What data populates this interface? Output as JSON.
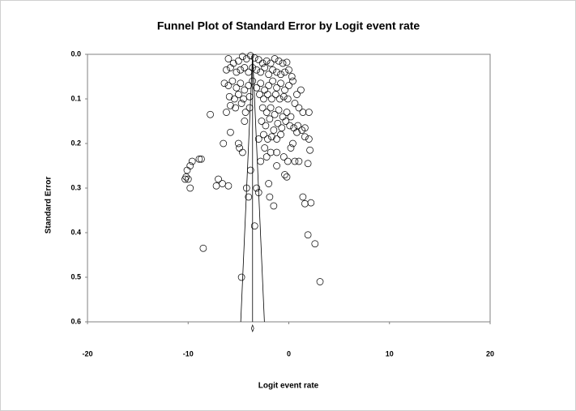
{
  "chart_data": {
    "type": "funnel",
    "title": "Funnel Plot of Standard Error by Logit event rate",
    "x_label": "Logit event rate",
    "y_label": "Standard Error",
    "xlim": [
      -20,
      20
    ],
    "xticks": [
      -20,
      -10,
      0,
      10,
      20
    ],
    "ylim": [
      0,
      0.6
    ],
    "y_inverted": true,
    "yticks": [
      {
        "value": 0,
        "label": "0.0"
      },
      0.1,
      0.2,
      0.3,
      0.4,
      0.5,
      0.6
    ],
    "summary": -3.6,
    "color": "#000000",
    "x": [
      -6,
      -5.5,
      -5,
      -4.6,
      -4.2,
      -3.8,
      -3.4,
      -3,
      -2.6,
      -2.2,
      -1.8,
      -1.4,
      -1,
      -0.6,
      -0.2,
      -6.2,
      -5.8,
      -5.2,
      -4.8,
      -4.4,
      -4,
      -3.6,
      -3.2,
      -2.8,
      -2.4,
      -2,
      -1.6,
      -1.2,
      -0.8,
      -0.4,
      0,
      0.3,
      -6.4,
      -6,
      -5.6,
      -5.2,
      -4.8,
      -4.4,
      -4,
      -3.6,
      -3.2,
      -2.8,
      -2.4,
      -2,
      -1.6,
      -1.2,
      -0.8,
      -0.4,
      0,
      0.4,
      0.8,
      -5.9,
      -5.4,
      -5,
      -4.5,
      -3.9,
      -2.9,
      -2.5,
      -2.1,
      -1.7,
      -1.3,
      -0.9,
      -0.5,
      -0.1,
      0.6,
      1.2,
      1.0,
      -5.8,
      -5.3,
      -4.7,
      -4.3,
      -3.9,
      -2.6,
      -2.2,
      -1.8,
      -1.4,
      -1,
      -0.6,
      -0.2,
      0.2,
      1.4,
      2,
      -7.8,
      -6.2,
      -4.4,
      -2.7,
      -2.3,
      -1.9,
      -1.5,
      -1.1,
      -0.7,
      -0.3,
      0.1,
      0.5,
      0.9,
      1.3,
      1.6,
      -5.8,
      -2.5,
      -2.1,
      -1.7,
      -1.2,
      -0.8,
      0.4,
      0.8,
      1.6,
      2.0,
      -3,
      -6.5,
      -5,
      -4.9,
      -4.6,
      -2.4,
      -2.2,
      -1.8,
      -1.2,
      -0.5,
      0.2,
      2.1,
      -1.2,
      -0.1,
      0.6,
      1.0,
      1.9,
      -2.8,
      -3.8,
      -8.7,
      -8.9,
      -9.6,
      -9.8,
      -10.1,
      -10.2,
      -10,
      -10.3,
      -9.8,
      -7,
      -6.6,
      -7.2,
      -6,
      -0.4,
      -0.2,
      -2,
      -4.2,
      -4,
      -3.2,
      -3.4,
      -3,
      -1.9,
      -1.5,
      1.4,
      2.2,
      1.6,
      1.9,
      2.6,
      -8.5,
      -4.7,
      3.1
    ],
    "values": [
      0.01,
      0.02,
      0.015,
      0.005,
      0.01,
      0.003,
      0.008,
      0.012,
      0.02,
      0.015,
      0.02,
      0.01,
      0.015,
      0.02,
      0.018,
      0.035,
      0.03,
      0.04,
      0.035,
      0.03,
      0.04,
      0.03,
      0.035,
      0.04,
      0.03,
      0.045,
      0.035,
      0.04,
      0.045,
      0.04,
      0.035,
      0.05,
      0.065,
      0.07,
      0.06,
      0.075,
      0.065,
      0.08,
      0.07,
      0.06,
      0.075,
      0.065,
      0.08,
      0.07,
      0.06,
      0.075,
      0.065,
      0.08,
      0.07,
      0.06,
      0.09,
      0.095,
      0.1,
      0.09,
      0.1,
      0.095,
      0.09,
      0.1,
      0.09,
      0.1,
      0.09,
      0.1,
      0.095,
      0.1,
      0.11,
      0.08,
      0.12,
      0.115,
      0.12,
      0.11,
      0.13,
      0.12,
      0.12,
      0.13,
      0.12,
      0.135,
      0.125,
      0.14,
      0.13,
      0.14,
      0.13,
      0.13,
      0.135,
      0.13,
      0.15,
      0.15,
      0.16,
      0.145,
      0.17,
      0.155,
      0.165,
      0.15,
      0.16,
      0.165,
      0.16,
      0.17,
      0.165,
      0.175,
      0.18,
      0.19,
      0.185,
      0.19,
      0.18,
      0.2,
      0.175,
      0.185,
      0.19,
      0.19,
      0.2,
      0.2,
      0.21,
      0.22,
      0.21,
      0.23,
      0.22,
      0.22,
      0.23,
      0.21,
      0.215,
      0.25,
      0.24,
      0.24,
      0.24,
      0.245,
      0.24,
      0.26,
      0.235,
      0.235,
      0.24,
      0.25,
      0.26,
      0.275,
      0.28,
      0.28,
      0.3,
      0.28,
      0.29,
      0.295,
      0.295,
      0.27,
      0.275,
      0.29,
      0.3,
      0.32,
      0.3,
      0.385,
      0.31,
      0.32,
      0.34,
      0.32,
      0.333,
      0.335,
      0.405,
      0.425,
      0.435,
      0.5,
      0.51
    ]
  }
}
